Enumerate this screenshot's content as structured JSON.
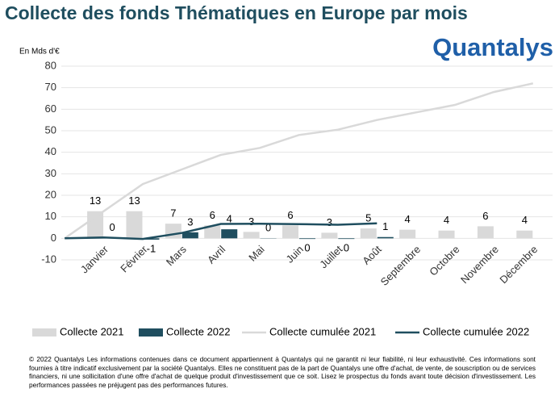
{
  "chart_data": {
    "type": "bar",
    "title": "Collecte des fonds Thématiques en Europe par mois",
    "y_label": "En Mds d'€",
    "categories": [
      null,
      "Janvier",
      "Février",
      "Mars",
      "Avril",
      "Mai",
      "Juin",
      "Juillet",
      "Août",
      "Septembre",
      "Octobre",
      "Novembre",
      "Décembre"
    ],
    "series": [
      {
        "name": "Collecte 2021",
        "type": "bar",
        "color": "#d9d9d9",
        "values": [
          null,
          12.6,
          12.6,
          6.8,
          6.0,
          3.0,
          6.0,
          2.6,
          4.6,
          4.0,
          3.6,
          5.6,
          3.6
        ],
        "value_labels": [
          null,
          "13",
          "13",
          "7",
          "6",
          "3",
          "6",
          "3",
          "5",
          "4",
          "4",
          "6",
          "4"
        ]
      },
      {
        "name": "Collecte 2022",
        "type": "bar",
        "color": "#1f4e5f",
        "values": [
          null,
          0.3,
          -0.6,
          2.8,
          4.2,
          0.1,
          -0.3,
          -0.3,
          0.6,
          null,
          null,
          null,
          null
        ],
        "value_labels": [
          null,
          "0",
          "-1",
          "3",
          "4",
          "0",
          "0",
          "0",
          "1",
          null,
          null,
          null,
          null
        ]
      },
      {
        "name": "Collecte cumulée 2021",
        "type": "line",
        "color": "#d9d9d9",
        "values": [
          0,
          12.6,
          25.2,
          32,
          38.8,
          42,
          48,
          50.5,
          55,
          58.5,
          62,
          68,
          72
        ]
      },
      {
        "name": "Collecte cumulée 2022",
        "type": "line",
        "color": "#1f4e5f",
        "values": [
          0,
          0.4,
          -0.3,
          2.5,
          6.7,
          6.8,
          6.6,
          6.3,
          7.0,
          null,
          null,
          null,
          null
        ]
      }
    ],
    "ylim": [
      -10,
      80
    ],
    "yticks": [
      -10,
      0,
      10,
      20,
      30,
      40,
      50,
      60,
      70,
      80
    ],
    "grid": true
  },
  "logo": "Quantalys",
  "footer": "© 2022 Quantalys Les informations contenues dans ce document appartiennent à Quantalys qui ne garantit ni leur fiabilité, ni leur exhaustivité. Ces informations sont fournies à titre indicatif exclusivement par la société Quantalys. Elles ne constituent pas de la part de Quantalys une offre d'achat, de vente, de souscription ou de services financiers, ni une sollicitation d'une offre d'achat de quelque produit d'investissement que ce soit. Lisez le prospectus du fonds avant toute décision d'investissement. Les performances passées ne préjugent pas des performances futures."
}
